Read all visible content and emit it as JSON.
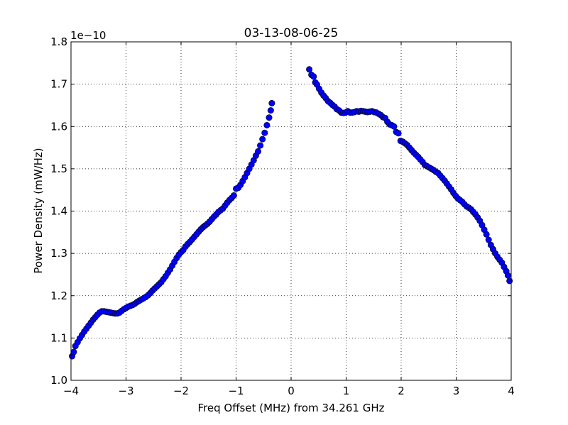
{
  "chart_data": {
    "type": "scatter",
    "title": "03-13-08-06-25",
    "xlabel": "Freq Offset (MHz) from 34.261 GHz",
    "ylabel": "Power Density (mW/Hz)",
    "offset_label": "1e−10",
    "xlim": [
      -4,
      4
    ],
    "ylim": [
      1.0,
      1.8
    ],
    "x_ticks": [
      -4,
      -3,
      -2,
      -1,
      0,
      1,
      2,
      3,
      4
    ],
    "x_tick_labels": [
      "−4",
      "−3",
      "−2",
      "−1",
      "0",
      "1",
      "2",
      "3",
      "4"
    ],
    "y_ticks": [
      1.0,
      1.1,
      1.2,
      1.3,
      1.4,
      1.5,
      1.6,
      1.7,
      1.8
    ],
    "y_tick_labels": [
      "1.0",
      "1.1",
      "1.2",
      "1.3",
      "1.4",
      "1.5",
      "1.6",
      "1.7",
      "1.8"
    ],
    "grid": true,
    "marker_color": "#0000ff",
    "series": [
      {
        "points": [
          [
            -3.98,
            1.057
          ],
          [
            -3.95,
            1.067
          ],
          [
            -3.92,
            1.081
          ],
          [
            -3.88,
            1.09
          ],
          [
            -3.84,
            1.099
          ],
          [
            -3.8,
            1.107
          ],
          [
            -3.76,
            1.115
          ],
          [
            -3.72,
            1.122
          ],
          [
            -3.68,
            1.129
          ],
          [
            -3.64,
            1.136
          ],
          [
            -3.6,
            1.143
          ],
          [
            -3.56,
            1.149
          ],
          [
            -3.52,
            1.155
          ],
          [
            -3.48,
            1.16
          ],
          [
            -3.44,
            1.163
          ],
          [
            -3.4,
            1.163
          ],
          [
            -3.36,
            1.162
          ],
          [
            -3.32,
            1.161
          ],
          [
            -3.28,
            1.16
          ],
          [
            -3.24,
            1.159
          ],
          [
            -3.2,
            1.158
          ],
          [
            -3.16,
            1.158
          ],
          [
            -3.12,
            1.16
          ],
          [
            -3.08,
            1.164
          ],
          [
            -3.04,
            1.168
          ],
          [
            -3.0,
            1.171
          ],
          [
            -2.96,
            1.174
          ],
          [
            -2.92,
            1.176
          ],
          [
            -2.88,
            1.178
          ],
          [
            -2.84,
            1.181
          ],
          [
            -2.8,
            1.185
          ],
          [
            -2.76,
            1.188
          ],
          [
            -2.72,
            1.191
          ],
          [
            -2.68,
            1.194
          ],
          [
            -2.64,
            1.197
          ],
          [
            -2.6,
            1.201
          ],
          [
            -2.56,
            1.206
          ],
          [
            -2.52,
            1.212
          ],
          [
            -2.48,
            1.217
          ],
          [
            -2.44,
            1.222
          ],
          [
            -2.4,
            1.227
          ],
          [
            -2.36,
            1.232
          ],
          [
            -2.32,
            1.239
          ],
          [
            -2.28,
            1.246
          ],
          [
            -2.24,
            1.254
          ],
          [
            -2.2,
            1.262
          ],
          [
            -2.16,
            1.271
          ],
          [
            -2.12,
            1.28
          ],
          [
            -2.08,
            1.289
          ],
          [
            -2.04,
            1.297
          ],
          [
            -2.0,
            1.303
          ],
          [
            -1.96,
            1.308
          ],
          [
            -1.92,
            1.316
          ],
          [
            -1.88,
            1.322
          ],
          [
            -1.84,
            1.327
          ],
          [
            -1.8,
            1.333
          ],
          [
            -1.76,
            1.339
          ],
          [
            -1.72,
            1.345
          ],
          [
            -1.68,
            1.351
          ],
          [
            -1.64,
            1.357
          ],
          [
            -1.6,
            1.362
          ],
          [
            -1.56,
            1.366
          ],
          [
            -1.52,
            1.37
          ],
          [
            -1.48,
            1.375
          ],
          [
            -1.44,
            1.381
          ],
          [
            -1.4,
            1.387
          ],
          [
            -1.36,
            1.392
          ],
          [
            -1.32,
            1.398
          ],
          [
            -1.28,
            1.402
          ],
          [
            -1.24,
            1.406
          ],
          [
            -1.2,
            1.413
          ],
          [
            -1.16,
            1.42
          ],
          [
            -1.12,
            1.426
          ],
          [
            -1.08,
            1.431
          ],
          [
            -1.04,
            1.437
          ],
          [
            -1.0,
            1.453
          ],
          [
            -0.96,
            1.455
          ],
          [
            -0.92,
            1.462
          ],
          [
            -0.88,
            1.471
          ],
          [
            -0.84,
            1.48
          ],
          [
            -0.8,
            1.49
          ],
          [
            -0.76,
            1.5
          ],
          [
            -0.72,
            1.51
          ],
          [
            -0.68,
            1.52
          ],
          [
            -0.64,
            1.531
          ],
          [
            -0.6,
            1.541
          ],
          [
            -0.56,
            1.555
          ],
          [
            -0.52,
            1.57
          ],
          [
            -0.48,
            1.585
          ],
          [
            -0.44,
            1.603
          ],
          [
            -0.4,
            1.621
          ],
          [
            -0.37,
            1.638
          ],
          [
            -0.35,
            1.655
          ]
        ]
      },
      {
        "points": [
          [
            0.33,
            1.735
          ],
          [
            0.37,
            1.722
          ],
          [
            0.41,
            1.718
          ],
          [
            0.44,
            1.704
          ],
          [
            0.47,
            1.699
          ],
          [
            0.51,
            1.689
          ],
          [
            0.55,
            1.68
          ],
          [
            0.59,
            1.673
          ],
          [
            0.63,
            1.667
          ],
          [
            0.67,
            1.66
          ],
          [
            0.71,
            1.656
          ],
          [
            0.75,
            1.651
          ],
          [
            0.79,
            1.647
          ],
          [
            0.83,
            1.641
          ],
          [
            0.87,
            1.638
          ],
          [
            0.91,
            1.633
          ],
          [
            0.95,
            1.632
          ],
          [
            0.99,
            1.633
          ],
          [
            1.03,
            1.636
          ],
          [
            1.07,
            1.633
          ],
          [
            1.11,
            1.633
          ],
          [
            1.15,
            1.634
          ],
          [
            1.19,
            1.636
          ],
          [
            1.23,
            1.635
          ],
          [
            1.27,
            1.637
          ],
          [
            1.31,
            1.636
          ],
          [
            1.35,
            1.635
          ],
          [
            1.39,
            1.634
          ],
          [
            1.43,
            1.635
          ],
          [
            1.47,
            1.636
          ],
          [
            1.51,
            1.634
          ],
          [
            1.55,
            1.633
          ],
          [
            1.59,
            1.63
          ],
          [
            1.63,
            1.627
          ],
          [
            1.67,
            1.622
          ],
          [
            1.71,
            1.62
          ],
          [
            1.75,
            1.611
          ],
          [
            1.79,
            1.605
          ],
          [
            1.83,
            1.603
          ],
          [
            1.87,
            1.6
          ],
          [
            1.91,
            1.587
          ],
          [
            1.95,
            1.584
          ],
          [
            1.99,
            1.566
          ],
          [
            2.03,
            1.564
          ],
          [
            2.07,
            1.56
          ],
          [
            2.11,
            1.556
          ],
          [
            2.15,
            1.55
          ],
          [
            2.19,
            1.544
          ],
          [
            2.23,
            1.538
          ],
          [
            2.27,
            1.533
          ],
          [
            2.31,
            1.528
          ],
          [
            2.35,
            1.522
          ],
          [
            2.39,
            1.516
          ],
          [
            2.43,
            1.509
          ],
          [
            2.47,
            1.506
          ],
          [
            2.51,
            1.503
          ],
          [
            2.55,
            1.5
          ],
          [
            2.59,
            1.497
          ],
          [
            2.63,
            1.493
          ],
          [
            2.67,
            1.49
          ],
          [
            2.71,
            1.484
          ],
          [
            2.75,
            1.478
          ],
          [
            2.79,
            1.472
          ],
          [
            2.83,
            1.465
          ],
          [
            2.87,
            1.458
          ],
          [
            2.91,
            1.451
          ],
          [
            2.95,
            1.443
          ],
          [
            2.99,
            1.436
          ],
          [
            3.03,
            1.43
          ],
          [
            3.07,
            1.426
          ],
          [
            3.11,
            1.422
          ],
          [
            3.15,
            1.416
          ],
          [
            3.19,
            1.411
          ],
          [
            3.23,
            1.408
          ],
          [
            3.27,
            1.404
          ],
          [
            3.31,
            1.398
          ],
          [
            3.35,
            1.392
          ],
          [
            3.39,
            1.385
          ],
          [
            3.43,
            1.377
          ],
          [
            3.47,
            1.367
          ],
          [
            3.51,
            1.356
          ],
          [
            3.55,
            1.345
          ],
          [
            3.59,
            1.332
          ],
          [
            3.63,
            1.32
          ],
          [
            3.67,
            1.31
          ],
          [
            3.71,
            1.3
          ],
          [
            3.75,
            1.292
          ],
          [
            3.79,
            1.285
          ],
          [
            3.83,
            1.278
          ],
          [
            3.87,
            1.268
          ],
          [
            3.91,
            1.258
          ],
          [
            3.94,
            1.248
          ],
          [
            3.97,
            1.235
          ]
        ]
      }
    ]
  }
}
